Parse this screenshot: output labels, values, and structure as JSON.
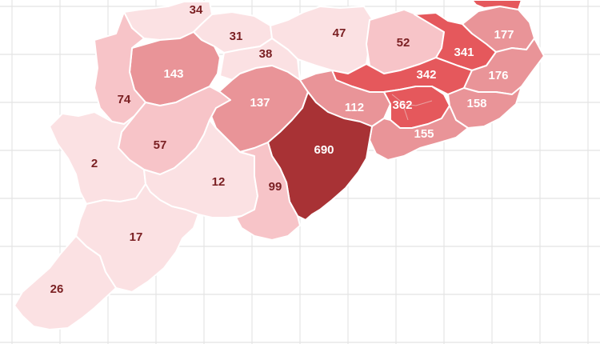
{
  "map": {
    "colors": {
      "background": "#ffffff",
      "grid": "#e4e4e4",
      "level_1": "#fbe1e3",
      "level_2": "#f7c4c8",
      "level_3": "#e99498",
      "level_4": "#e5585c",
      "level_5": "#a83235",
      "label_dark": "#7a1f22",
      "label_light": "#ffffff"
    },
    "districts": [
      {
        "id": "d34",
        "value": "34",
        "level": "level_1"
      },
      {
        "id": "d31",
        "value": "31",
        "level": "level_1"
      },
      {
        "id": "d47",
        "value": "47",
        "level": "level_1"
      },
      {
        "id": "d38",
        "value": "38",
        "level": "level_1"
      },
      {
        "id": "d52",
        "value": "52",
        "level": "level_2"
      },
      {
        "id": "d341",
        "value": "341",
        "level": "level_4"
      },
      {
        "id": "d177",
        "value": "177",
        "level": "level_3"
      },
      {
        "id": "d143",
        "value": "143",
        "level": "level_3"
      },
      {
        "id": "d74",
        "value": "74",
        "level": "level_2"
      },
      {
        "id": "d342",
        "value": "342",
        "level": "level_4"
      },
      {
        "id": "d176",
        "value": "176",
        "level": "level_3"
      },
      {
        "id": "d137",
        "value": "137",
        "level": "level_3"
      },
      {
        "id": "d112",
        "value": "112",
        "level": "level_3"
      },
      {
        "id": "d362",
        "value": "362",
        "level": "level_4"
      },
      {
        "id": "d158",
        "value": "158",
        "level": "level_3"
      },
      {
        "id": "d155",
        "value": "155",
        "level": "level_3"
      },
      {
        "id": "d57",
        "value": "57",
        "level": "level_2"
      },
      {
        "id": "d690",
        "value": "690",
        "level": "level_5"
      },
      {
        "id": "d2",
        "value": "2",
        "level": "level_1"
      },
      {
        "id": "d12",
        "value": "12",
        "level": "level_1"
      },
      {
        "id": "d99",
        "value": "99",
        "level": "level_2"
      },
      {
        "id": "d17",
        "value": "17",
        "level": "level_1"
      },
      {
        "id": "d26",
        "value": "26",
        "level": "level_1"
      },
      {
        "id": "dtopR",
        "value": "",
        "level": "level_4"
      }
    ]
  }
}
